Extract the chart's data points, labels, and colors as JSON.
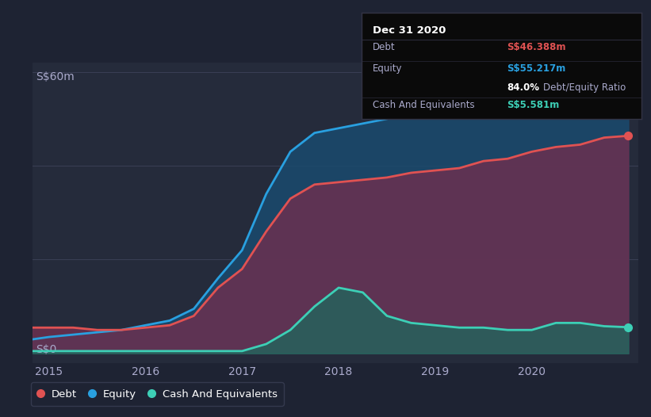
{
  "bg_color": "#1e2333",
  "plot_bg_color": "#252b3b",
  "grid_color": "#3a3f55",
  "title": "Dec 31 2020",
  "ylabel": "S$60m",
  "y0_label": "S$0",
  "xlim": [
    2014.83,
    2021.1
  ],
  "ylim": [
    -2,
    62
  ],
  "xticks": [
    2015,
    2016,
    2017,
    2018,
    2019,
    2020
  ],
  "debt_color": "#e05252",
  "equity_color": "#29a0e0",
  "cash_color": "#3dcfb6",
  "debt_fill_color": "#6b3050",
  "equity_fill_color": "#1a4a6e",
  "cash_fill_color": "#1a6b5e",
  "tooltip_bg": "#0a0a0a",
  "tooltip_border": "#333344",
  "debt_label": "Debt",
  "equity_label": "Equity",
  "cash_label": "Cash And Equivalents",
  "debt_value": "S$46.388m",
  "equity_value": "S$55.217m",
  "ratio_value": "84.0%",
  "ratio_label": "Debt/Equity Ratio",
  "cash_value": "S$5.581m",
  "time": [
    2014.83,
    2015.0,
    2015.25,
    2015.5,
    2015.75,
    2016.0,
    2016.25,
    2016.5,
    2016.75,
    2017.0,
    2017.25,
    2017.5,
    2017.75,
    2018.0,
    2018.25,
    2018.5,
    2018.75,
    2019.0,
    2019.25,
    2019.5,
    2019.75,
    2020.0,
    2020.25,
    2020.5,
    2020.75,
    2021.0
  ],
  "debt": [
    5.5,
    5.5,
    5.5,
    5.0,
    5.0,
    5.5,
    6.0,
    8.0,
    14.0,
    18.0,
    26.0,
    33.0,
    36.0,
    36.5,
    37.0,
    37.5,
    38.5,
    39.0,
    39.5,
    41.0,
    41.5,
    43.0,
    44.0,
    44.5,
    46.0,
    46.388
  ],
  "equity": [
    3.0,
    3.5,
    4.0,
    4.5,
    5.0,
    6.0,
    7.0,
    9.5,
    16.0,
    22.0,
    34.0,
    43.0,
    47.0,
    48.0,
    49.0,
    50.0,
    51.0,
    51.5,
    52.0,
    53.0,
    53.5,
    54.0,
    55.0,
    55.0,
    55.0,
    55.217
  ],
  "cash": [
    0.5,
    0.5,
    0.5,
    0.5,
    0.5,
    0.5,
    0.5,
    0.5,
    0.5,
    0.5,
    2.0,
    5.0,
    10.0,
    14.0,
    13.0,
    8.0,
    6.5,
    6.0,
    5.5,
    5.5,
    5.0,
    5.0,
    6.5,
    6.5,
    5.8,
    5.581
  ]
}
